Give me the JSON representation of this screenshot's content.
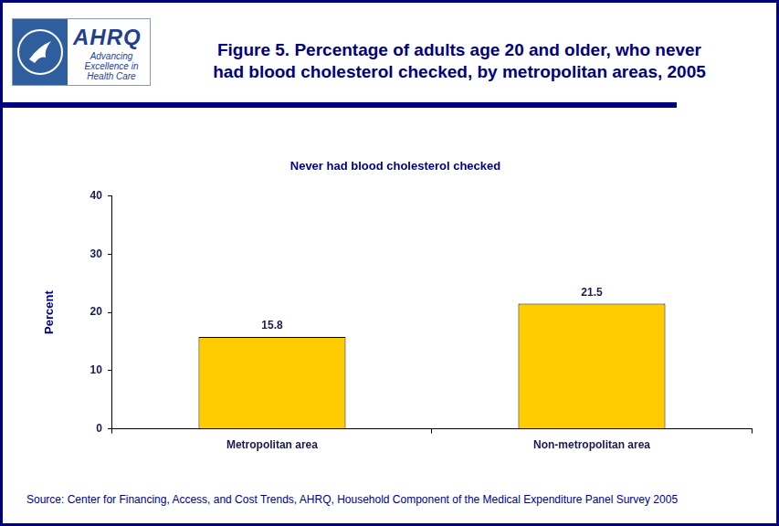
{
  "header": {
    "logo_name": "AHRQ",
    "logo_tagline": [
      "Advancing",
      "Excellence in",
      "Health Care"
    ],
    "title": [
      "Figure 5. Percentage of adults age 20 and older, who never",
      "had blood cholesterol checked, by metropolitan areas, 2005"
    ]
  },
  "chart_data": {
    "type": "bar",
    "title": "Never had blood cholesterol checked",
    "y_label": "Percent",
    "categories": [
      "Metropolitan area",
      "Non-metropolitan area"
    ],
    "values": [
      15.8,
      21.5
    ],
    "color": "#ffcc00",
    "ylim": [
      0,
      40
    ],
    "yticks": [
      0,
      10,
      20,
      30,
      40
    ],
    "grid": false,
    "data_labels": true
  },
  "source": "Source: Center for Financing, Access, and Cost Trends, AHRQ, Household Component of the Medical Expenditure Panel Survey 2005"
}
